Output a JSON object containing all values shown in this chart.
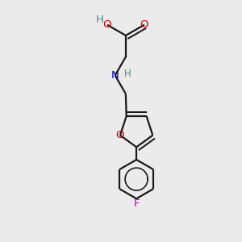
{
  "bg_color": "#ebebeb",
  "bond_color": "#1a1a1a",
  "oxygen_color": "#cc0000",
  "nitrogen_color": "#0000cc",
  "fluorine_color": "#bb00bb",
  "hydrogen_color": "#4a8a8a",
  "line_width": 1.6,
  "font_size": 9.5,
  "fig_size": [
    3.0,
    3.0
  ],
  "dpi": 100,
  "xlim": [
    0,
    10
  ],
  "ylim": [
    0,
    10
  ]
}
